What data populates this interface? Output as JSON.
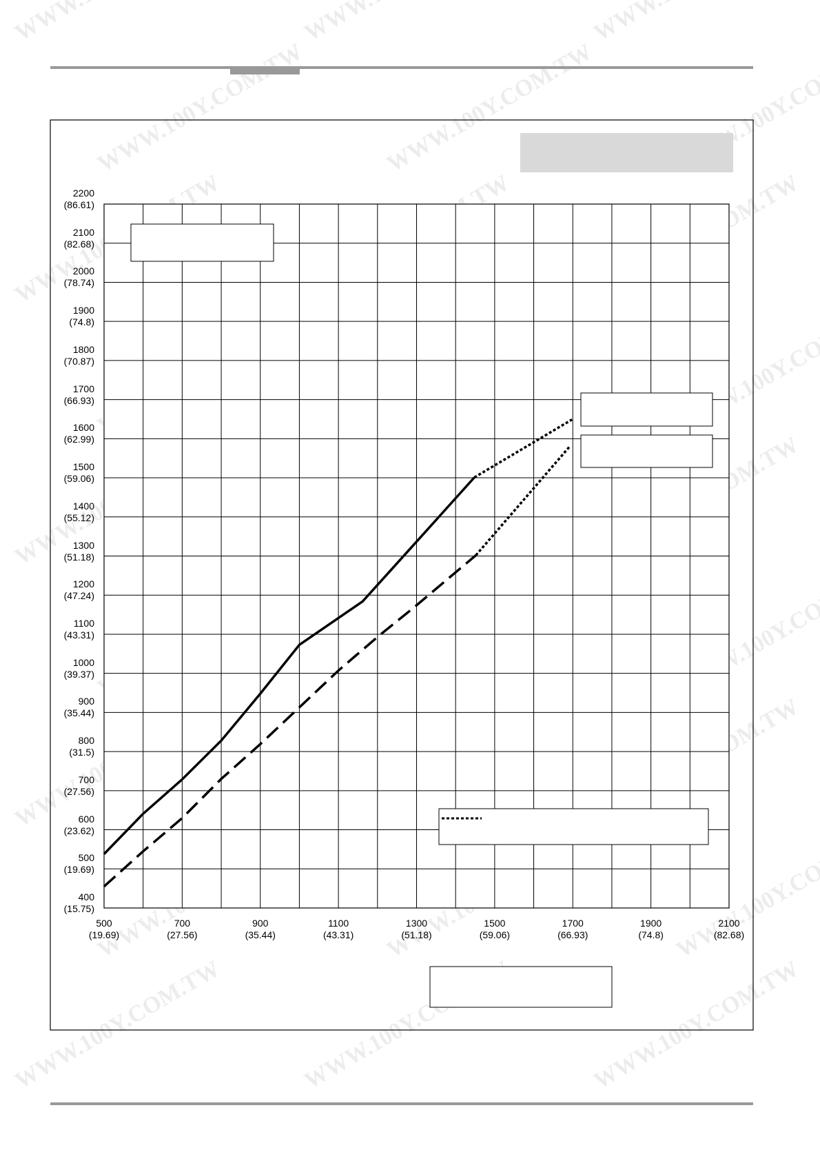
{
  "watermark": "WWW.100Y.COM.TW",
  "chart_data": {
    "type": "line",
    "xlim": [
      500,
      2100
    ],
    "ylim": [
      400,
      2200
    ],
    "xticks": [
      {
        "value": 500,
        "label": "500\n(19.69)"
      },
      {
        "value": 700,
        "label": "700\n(27.56)"
      },
      {
        "value": 900,
        "label": "900\n(35.44)"
      },
      {
        "value": 1100,
        "label": "1100\n(43.31)"
      },
      {
        "value": 1300,
        "label": "1300\n(51.18)"
      },
      {
        "value": 1500,
        "label": "1500\n(59.06)"
      },
      {
        "value": 1700,
        "label": "1700\n(66.93)"
      },
      {
        "value": 1900,
        "label": "1900\n(74.8)"
      },
      {
        "value": 2100,
        "label": "2100\n(82.68)"
      }
    ],
    "yticks": [
      {
        "value": 400,
        "label": "400\n(15.75)"
      },
      {
        "value": 500,
        "label": "500\n(19.69)"
      },
      {
        "value": 600,
        "label": "600\n(23.62)"
      },
      {
        "value": 700,
        "label": "700\n(27.56)"
      },
      {
        "value": 800,
        "label": "800\n(31.5)"
      },
      {
        "value": 900,
        "label": "900\n(35.44)"
      },
      {
        "value": 1000,
        "label": "1000\n(39.37)"
      },
      {
        "value": 1100,
        "label": "1100\n(43.31)"
      },
      {
        "value": 1200,
        "label": "1200\n(47.24)"
      },
      {
        "value": 1300,
        "label": "1300\n(51.18)"
      },
      {
        "value": 1400,
        "label": "1400\n(55.12)"
      },
      {
        "value": 1500,
        "label": "1500\n(59.06)"
      },
      {
        "value": 1600,
        "label": "1600\n(62.99)"
      },
      {
        "value": 1700,
        "label": "1700\n(66.93)"
      },
      {
        "value": 1800,
        "label": "1800\n(70.87)"
      },
      {
        "value": 1900,
        "label": "1900\n(74.8)"
      },
      {
        "value": 2000,
        "label": "2000\n(78.74)"
      },
      {
        "value": 2100,
        "label": "2100\n(82.68)"
      },
      {
        "value": 2200,
        "label": "2200\n(86.61)"
      }
    ],
    "grid": true,
    "series": [
      {
        "color": "#000000",
        "dash": "solid",
        "x": [
          500,
          599,
          699,
          800,
          900,
          1000,
          1162,
          1294,
          1448
        ],
        "values": [
          538,
          640,
          728,
          828,
          948,
          1073,
          1184,
          1330,
          1501
        ]
      },
      {
        "color": "#000000",
        "dash": "dashed",
        "x": [
          500,
          599,
          699,
          800,
          900,
          1000,
          1101,
          1200,
          1294,
          1452
        ],
        "values": [
          455,
          544,
          629,
          730,
          819,
          913,
          1008,
          1093,
          1169,
          1302
        ]
      },
      {
        "color": "#000000",
        "dash": "dotted",
        "x": [
          1448,
          1698
        ],
        "values": [
          1501,
          1649
        ]
      },
      {
        "color": "#000000",
        "dash": "dotted",
        "x": [
          1452,
          1692
        ],
        "values": [
          1302,
          1580
        ]
      }
    ]
  }
}
